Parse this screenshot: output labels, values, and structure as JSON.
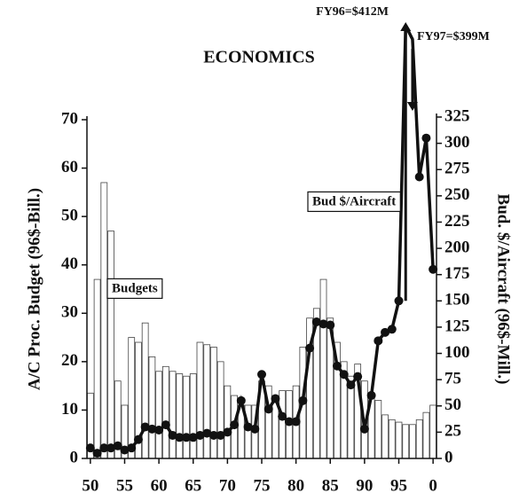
{
  "chart_data": {
    "type": "bar-line",
    "title": "ECONOMICS",
    "ylabel": "A/C Proc. Budget (96$-Bill.)",
    "y2label": "Bud. $/Aircraft (96$-Mill.)",
    "annotations": [
      "FY96=$412M",
      "FY97=$399M"
    ],
    "x": [
      1950,
      1951,
      1952,
      1953,
      1954,
      1955,
      1956,
      1957,
      1958,
      1959,
      1960,
      1961,
      1962,
      1963,
      1964,
      1965,
      1966,
      1967,
      1968,
      1969,
      1970,
      1971,
      1972,
      1973,
      1974,
      1975,
      1976,
      1977,
      1978,
      1979,
      1980,
      1981,
      1982,
      1983,
      1984,
      1985,
      1986,
      1987,
      1988,
      1989,
      1990,
      1991,
      1992,
      1993,
      1994,
      1995,
      1996,
      1997,
      1998,
      1999,
      2000
    ],
    "xlim": [
      1949.5,
      2000.5
    ],
    "xticks": [
      {
        "value": 1950,
        "label": "50"
      },
      {
        "value": 1955,
        "label": "55"
      },
      {
        "value": 1960,
        "label": "60"
      },
      {
        "value": 1965,
        "label": "65"
      },
      {
        "value": 1970,
        "label": "70"
      },
      {
        "value": 1975,
        "label": "75"
      },
      {
        "value": 1980,
        "label": "80"
      },
      {
        "value": 1985,
        "label": "85"
      },
      {
        "value": 1990,
        "label": "90"
      },
      {
        "value": 1995,
        "label": "95"
      },
      {
        "value": 2000,
        "label": "0"
      }
    ],
    "ylim": [
      0,
      70
    ],
    "yticks": [
      0,
      10,
      20,
      30,
      40,
      50,
      60,
      70
    ],
    "y2lim": [
      0,
      325
    ],
    "y2ticks": [
      0,
      25,
      50,
      75,
      100,
      125,
      150,
      175,
      200,
      225,
      250,
      275,
      300,
      325
    ],
    "series": [
      {
        "name": "Budgets",
        "type": "bar",
        "color": "#ffffff",
        "values": [
          13.5,
          37,
          57,
          47,
          16,
          11,
          25,
          24,
          28,
          21,
          18,
          19,
          18,
          17.5,
          17,
          17.5,
          24,
          23.5,
          23,
          20,
          15,
          13,
          11,
          11,
          11,
          16,
          15,
          13,
          14,
          14,
          15,
          23,
          29,
          31,
          37,
          29,
          24,
          20,
          17,
          19.5,
          16,
          13,
          12,
          9,
          8,
          7.5,
          7,
          7,
          8,
          9.5,
          11
        ]
      },
      {
        "name": "Bud $/Aircraft",
        "type": "line",
        "axis": "y2",
        "color": "#111111",
        "values": [
          10,
          5,
          10,
          10,
          12,
          8,
          10,
          18,
          30,
          28,
          27,
          32,
          22,
          20,
          20,
          20,
          22,
          24,
          22,
          22,
          25,
          32,
          55,
          30,
          28,
          80,
          47,
          57,
          40,
          35,
          35,
          55,
          105,
          130,
          128,
          127,
          88,
          80,
          70,
          78,
          28,
          60,
          112,
          120,
          123,
          150,
          412,
          399,
          268,
          305,
          180
        ]
      }
    ]
  }
}
